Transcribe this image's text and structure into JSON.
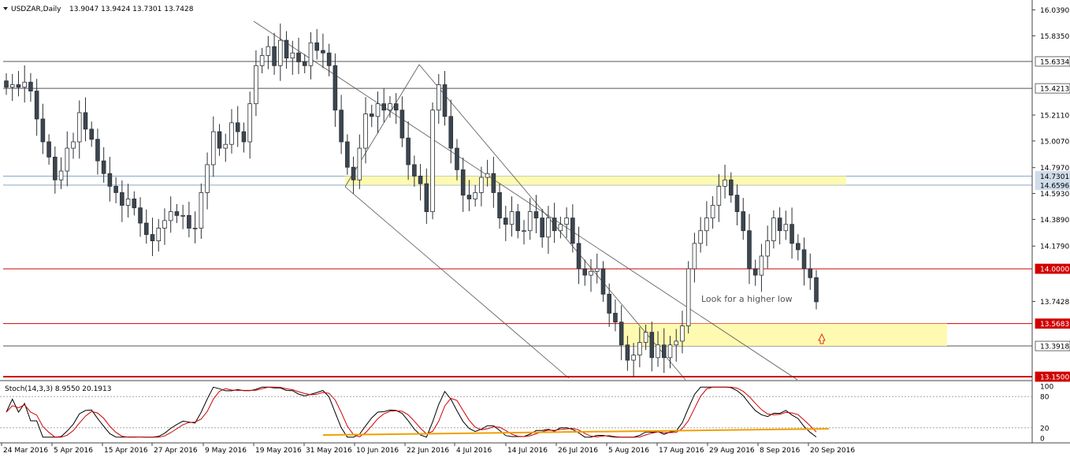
{
  "header": {
    "symbol": "USDZAR,Daily",
    "ohlc": "13.9047 13.9424 13.7301 13.7428"
  },
  "indicator": {
    "title": "Stoch(14,3,3) 8.9550 20.1913",
    "levels": [
      "100",
      "80",
      "20",
      "0"
    ],
    "main_color": "#000000",
    "signal_color": "#d00000",
    "trend_color": "#f0a000"
  },
  "annotation": "Look for a higher low",
  "price_scale": [
    "16.0390",
    "15.8350",
    "15.6334",
    "15.4213",
    "15.2110",
    "15.0070",
    "14.7970",
    "14.7301",
    "14.6596",
    "14.5930",
    "14.3890",
    "14.1790",
    "14.0000",
    "13.7428",
    "13.5683",
    "13.3918",
    "13.1500"
  ],
  "colors": {
    "bull": "#ffffff",
    "bear": "#3c4650",
    "wick": "#2b2f33",
    "resistance": "#d00000",
    "support_zone": "#fff9a8",
    "level": "#555555"
  },
  "chart_data": {
    "type": "candlestick",
    "x_labels": [
      "24 Mar 2016",
      "5 Apr 2016",
      "15 Apr 2016",
      "27 Apr 2016",
      "9 May 2016",
      "19 May 2016",
      "31 May 2016",
      "10 Jun 2016",
      "22 Jun 2016",
      "4 Jul 2016",
      "14 Jul 2016",
      "26 Jul 2016",
      "5 Aug 2016",
      "17 Aug 2016",
      "29 Aug 2016",
      "8 Sep 2016",
      "20 Sep 2016"
    ],
    "ylim": [
      13.15,
      16.08
    ],
    "levels": [
      {
        "value": 15.6334,
        "color": "#555555",
        "label": "15.6334"
      },
      {
        "value": 15.4213,
        "color": "#555555",
        "label": "15.4213"
      },
      {
        "value": 14.7301,
        "color": "#8aa9c8",
        "label": "14.7301"
      },
      {
        "value": 14.6596,
        "color": "#8aa9c8",
        "label": "14.6596"
      },
      {
        "value": 14.0,
        "color": "#d00000",
        "label": "14.0000"
      },
      {
        "value": 13.5683,
        "color": "#d00000",
        "label": "13.5683"
      },
      {
        "value": 13.3918,
        "color": "#555555",
        "label": "13.3918"
      },
      {
        "value": 13.15,
        "color": "#d00000",
        "label": "13.1500"
      }
    ],
    "zones": [
      {
        "from_bar": 0.0,
        "to_bar": 0,
        "y1": 14.66,
        "y2": 14.73
      },
      {
        "from_bar": 0,
        "to_bar": 0,
        "y1": 13.39,
        "y2": 13.568
      }
    ],
    "closes": [
      15.43,
      15.45,
      15.43,
      15.47,
      15.4,
      15.18,
      15.0,
      14.88,
      14.7,
      14.77,
      14.95,
      15.0,
      15.23,
      15.1,
      15.02,
      14.85,
      14.75,
      14.65,
      14.6,
      14.5,
      14.55,
      14.48,
      14.36,
      14.27,
      14.22,
      14.32,
      14.38,
      14.45,
      14.42,
      14.42,
      14.32,
      14.32,
      14.6,
      14.82,
      15.08,
      14.95,
      14.98,
      15.15,
      15.08,
      15.0,
      15.3,
      15.6,
      15.68,
      15.75,
      15.6,
      15.8,
      15.66,
      15.7,
      15.63,
      15.6,
      15.78,
      15.72,
      15.7,
      15.6,
      15.25,
      15.0,
      14.8,
      14.7,
      14.95,
      15.22,
      15.2,
      15.3,
      15.25,
      15.3,
      15.25,
      15.03,
      14.82,
      14.73,
      14.67,
      14.45,
      15.25,
      15.45,
      15.2,
      14.95,
      14.78,
      14.58,
      14.55,
      14.6,
      14.72,
      14.75,
      14.6,
      14.4,
      14.35,
      14.45,
      14.3,
      14.3,
      14.45,
      14.4,
      14.25,
      14.4,
      14.3,
      14.35,
      14.4,
      14.2,
      14.0,
      13.95,
      13.98,
      14.0,
      13.8,
      13.65,
      13.58,
      13.4,
      13.28,
      13.32,
      13.42,
      13.5,
      13.3,
      13.4,
      13.3,
      13.4,
      13.43,
      13.55,
      14.0,
      14.2,
      14.3,
      14.4,
      14.5,
      14.65,
      14.7,
      14.58,
      14.45,
      14.3,
      14.0,
      13.95,
      14.1,
      14.22,
      14.4,
      14.3,
      14.35,
      14.2,
      14.15,
      14.0,
      13.93,
      13.74
    ]
  }
}
